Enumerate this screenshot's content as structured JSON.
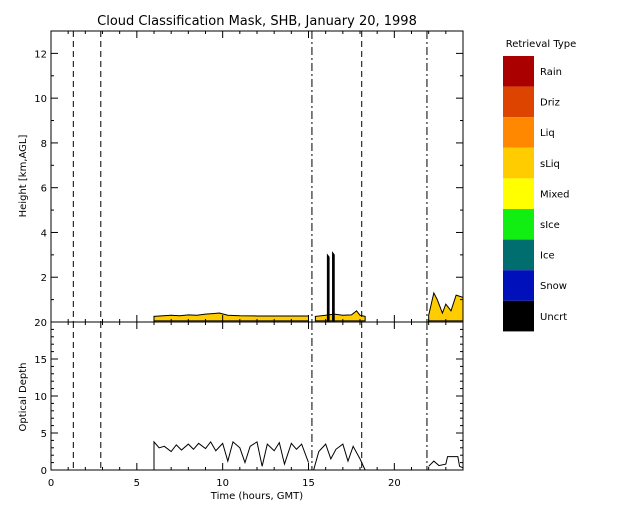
{
  "chart_data": [
    {
      "type": "area",
      "title": "Cloud Classification Mask, SHB, January 20, 1998",
      "ylabel": "Height [km,AGL]",
      "xlim": [
        0,
        24
      ],
      "ylim": [
        0,
        13
      ],
      "yticks": [
        2,
        4,
        6,
        8,
        10,
        12
      ],
      "grid": false,
      "vertical_markers_hours": [
        1.3,
        2.9,
        15.2,
        18.1,
        21.9
      ],
      "legend": {
        "title": "Retrieval Type",
        "placement": "right",
        "entries": [
          {
            "label": "Rain",
            "color": "#aa0000"
          },
          {
            "label": "Driz",
            "color": "#dd4400"
          },
          {
            "label": "Liq",
            "color": "#ff8800"
          },
          {
            "label": "sLiq",
            "color": "#ffcc00"
          },
          {
            "label": "Mixed",
            "color": "#ffff00"
          },
          {
            "label": "sIce",
            "color": "#11ee11"
          },
          {
            "label": "Ice",
            "color": "#006e6e"
          },
          {
            "label": "Snow",
            "color": "#0011bb"
          },
          {
            "label": "Uncrt",
            "color": "#000000"
          }
        ]
      },
      "series": [
        {
          "color": "#ffcc00",
          "segments": [
            {
              "x": [
                6.0,
                7.0,
                7.5,
                8.0,
                8.5,
                9.0,
                9.5,
                9.8,
                10.3,
                11.0,
                12.0,
                13.0,
                14.0,
                15.0
              ],
              "top": [
                0.25,
                0.3,
                0.28,
                0.32,
                0.3,
                0.35,
                0.38,
                0.4,
                0.3,
                0.28,
                0.27,
                0.27,
                0.27,
                0.27
              ]
            },
            {
              "x": [
                15.4,
                16.0,
                16.5,
                17.0,
                17.5,
                17.8,
                18.0,
                18.3
              ],
              "top": [
                0.25,
                0.3,
                0.35,
                0.3,
                0.32,
                0.5,
                0.3,
                0.25
              ]
            },
            {
              "x": [
                22.0,
                22.3,
                22.5,
                22.8,
                23.0,
                23.3,
                23.6,
                24.0
              ],
              "top": [
                0.3,
                1.3,
                1.0,
                0.4,
                0.8,
                0.5,
                1.2,
                1.1
              ]
            }
          ]
        },
        {
          "color": "#000000",
          "segments": [
            {
              "x": [
                16.1,
                16.2
              ],
              "top": [
                3.0,
                2.9
              ]
            },
            {
              "x": [
                16.4,
                16.5
              ],
              "top": [
                3.1,
                3.0
              ]
            }
          ]
        }
      ]
    },
    {
      "type": "line",
      "xlabel": "Time (hours, GMT)",
      "ylabel": "Optical Depth",
      "xlim": [
        0,
        24
      ],
      "ylim": [
        0,
        20
      ],
      "xticks": [
        0,
        5,
        10,
        15,
        20
      ],
      "yticks": [
        0,
        5,
        10,
        15,
        20
      ],
      "grid": false,
      "vertical_markers_hours": [
        1.3,
        2.9,
        15.2,
        18.1,
        21.9
      ],
      "series": [
        {
          "color": "#000000",
          "segments": [
            {
              "x": [
                6.0,
                6.0,
                6.3,
                6.6,
                7.0,
                7.3,
                7.6,
                8.0,
                8.3,
                8.6,
                9.0,
                9.3,
                9.6,
                10.0,
                10.3,
                10.6,
                11.0,
                11.3,
                11.6,
                12.0,
                12.3,
                12.6,
                13.0,
                13.3,
                13.6,
                14.0,
                14.3,
                14.6,
                15.0
              ],
              "y": [
                0,
                3.8,
                3.0,
                3.2,
                2.5,
                3.4,
                2.7,
                3.5,
                2.8,
                3.6,
                2.9,
                3.8,
                2.6,
                3.6,
                1.2,
                3.8,
                3.0,
                1.0,
                3.2,
                3.8,
                0.5,
                3.5,
                2.6,
                3.7,
                0.8,
                3.6,
                2.8,
                3.5,
                1.0
              ]
            },
            {
              "x": [
                15.3,
                15.6,
                16.0,
                16.3,
                16.6,
                17.0,
                17.3,
                17.6,
                18.0,
                18.3
              ],
              "y": [
                0,
                2.5,
                3.5,
                1.5,
                2.8,
                3.5,
                1.2,
                3.2,
                1.5,
                0
              ]
            },
            {
              "x": [
                22.0,
                22.3,
                22.6,
                23.0,
                23.1,
                23.7,
                23.8,
                24.0
              ],
              "y": [
                0.5,
                1.2,
                0.6,
                0.8,
                1.8,
                1.8,
                0.5,
                0.3
              ]
            }
          ]
        }
      ]
    }
  ]
}
